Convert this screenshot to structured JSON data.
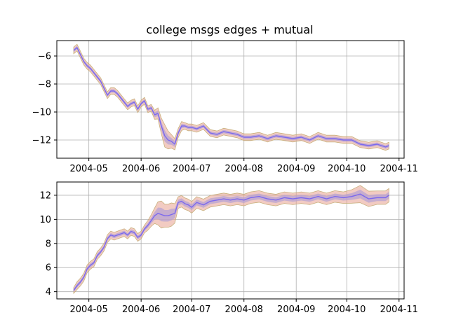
{
  "figure": {
    "title": "college msgs edges + mutual"
  },
  "style": {
    "line_color": "#7b68ee",
    "band_inner_color": "#b4a0d4",
    "band_outer_color": "#e8a090",
    "band_upper_color": "#c8b07c",
    "grid_color": "#b0b0b0",
    "spine_color": "#000000"
  },
  "chart_data": [
    {
      "type": "line",
      "title": "college msgs edges + mutual",
      "xlabel": "",
      "ylabel": "",
      "x_ticks": [
        "2004-05",
        "2004-06",
        "2004-07",
        "2004-08",
        "2004-09",
        "2004-10",
        "2004-11"
      ],
      "x_tick_dates": [
        "2004-05-01",
        "2004-06-01",
        "2004-07-01",
        "2004-08-01",
        "2004-09-01",
        "2004-10-01",
        "2004-11-01"
      ],
      "xlim": [
        "2004-04-12",
        "2004-11-04"
      ],
      "y_ticks": [
        -12,
        -10,
        -8,
        -6
      ],
      "ylim": [
        -13.3,
        -4.9
      ],
      "grid": true,
      "series": [
        {
          "x": [
            "2004-04-22",
            "2004-04-24",
            "2004-04-26",
            "2004-04-28",
            "2004-04-30",
            "2004-05-02",
            "2004-05-04",
            "2004-05-06",
            "2004-05-08",
            "2004-05-10",
            "2004-05-12",
            "2004-05-14",
            "2004-05-16",
            "2004-05-18",
            "2004-05-20",
            "2004-05-22",
            "2004-05-24",
            "2004-05-26",
            "2004-05-28",
            "2004-05-30",
            "2004-06-01",
            "2004-06-03",
            "2004-06-05",
            "2004-06-07",
            "2004-06-09",
            "2004-06-11",
            "2004-06-13",
            "2004-06-15",
            "2004-06-17",
            "2004-06-19",
            "2004-06-21",
            "2004-06-23",
            "2004-06-25",
            "2004-06-27",
            "2004-06-29",
            "2004-07-01",
            "2004-07-04",
            "2004-07-08",
            "2004-07-12",
            "2004-07-16",
            "2004-07-20",
            "2004-07-24",
            "2004-07-28",
            "2004-08-01",
            "2004-08-05",
            "2004-08-10",
            "2004-08-15",
            "2004-08-20",
            "2004-08-25",
            "2004-08-30",
            "2004-09-04",
            "2004-09-09",
            "2004-09-14",
            "2004-09-19",
            "2004-09-24",
            "2004-09-29",
            "2004-10-04",
            "2004-10-09",
            "2004-10-14",
            "2004-10-19",
            "2004-10-24",
            "2004-10-26"
          ],
          "y": [
            -5.6,
            -5.4,
            -5.9,
            -6.4,
            -6.7,
            -6.9,
            -7.2,
            -7.5,
            -7.8,
            -8.3,
            -8.8,
            -8.5,
            -8.5,
            -8.7,
            -9.0,
            -9.3,
            -9.6,
            -9.4,
            -9.3,
            -9.8,
            -9.4,
            -9.2,
            -9.8,
            -9.7,
            -10.2,
            -10.1,
            -11.0,
            -11.7,
            -12.0,
            -12.1,
            -12.3,
            -11.5,
            -11.0,
            -11.0,
            -11.1,
            -11.1,
            -11.2,
            -11.0,
            -11.5,
            -11.6,
            -11.4,
            -11.5,
            -11.6,
            -11.8,
            -11.8,
            -11.7,
            -11.9,
            -11.7,
            -11.8,
            -11.9,
            -11.8,
            -12.0,
            -11.7,
            -11.9,
            -11.9,
            -12.0,
            -12.0,
            -12.3,
            -12.4,
            -12.3,
            -12.5,
            -12.4
          ],
          "band_width": [
            0.15,
            0.15,
            0.15,
            0.15,
            0.15,
            0.15,
            0.15,
            0.15,
            0.15,
            0.15,
            0.15,
            0.15,
            0.15,
            0.15,
            0.15,
            0.15,
            0.15,
            0.15,
            0.15,
            0.15,
            0.15,
            0.15,
            0.15,
            0.15,
            0.2,
            0.25,
            0.35,
            0.5,
            0.4,
            0.3,
            0.25,
            0.2,
            0.2,
            0.15,
            0.15,
            0.15,
            0.15,
            0.15,
            0.15,
            0.15,
            0.15,
            0.15,
            0.15,
            0.15,
            0.15,
            0.15,
            0.15,
            0.15,
            0.15,
            0.15,
            0.15,
            0.15,
            0.15,
            0.15,
            0.15,
            0.15,
            0.15,
            0.15,
            0.15,
            0.15,
            0.15,
            0.15
          ]
        }
      ]
    },
    {
      "type": "line",
      "title": "",
      "xlabel": "",
      "ylabel": "",
      "x_ticks": [
        "2004-05",
        "2004-06",
        "2004-07",
        "2004-08",
        "2004-09",
        "2004-10",
        "2004-11"
      ],
      "x_tick_dates": [
        "2004-05-01",
        "2004-06-01",
        "2004-07-01",
        "2004-08-01",
        "2004-09-01",
        "2004-10-01",
        "2004-11-01"
      ],
      "xlim": [
        "2004-04-12",
        "2004-11-04"
      ],
      "y_ticks": [
        4,
        6,
        8,
        10,
        12
      ],
      "ylim": [
        3.4,
        13.1
      ],
      "grid": true,
      "series": [
        {
          "x": [
            "2004-04-22",
            "2004-04-24",
            "2004-04-26",
            "2004-04-28",
            "2004-04-30",
            "2004-05-02",
            "2004-05-04",
            "2004-05-06",
            "2004-05-08",
            "2004-05-10",
            "2004-05-12",
            "2004-05-14",
            "2004-05-16",
            "2004-05-18",
            "2004-05-20",
            "2004-05-22",
            "2004-05-24",
            "2004-05-26",
            "2004-05-28",
            "2004-05-30",
            "2004-06-01",
            "2004-06-03",
            "2004-06-05",
            "2004-06-07",
            "2004-06-09",
            "2004-06-11",
            "2004-06-13",
            "2004-06-15",
            "2004-06-17",
            "2004-06-19",
            "2004-06-21",
            "2004-06-23",
            "2004-06-25",
            "2004-06-27",
            "2004-06-29",
            "2004-07-01",
            "2004-07-04",
            "2004-07-08",
            "2004-07-12",
            "2004-07-16",
            "2004-07-20",
            "2004-07-24",
            "2004-07-28",
            "2004-08-01",
            "2004-08-05",
            "2004-08-10",
            "2004-08-15",
            "2004-08-20",
            "2004-08-25",
            "2004-08-30",
            "2004-09-04",
            "2004-09-09",
            "2004-09-14",
            "2004-09-19",
            "2004-09-24",
            "2004-09-29",
            "2004-10-04",
            "2004-10-09",
            "2004-10-14",
            "2004-10-19",
            "2004-10-24",
            "2004-10-26"
          ],
          "y": [
            4.1,
            4.5,
            4.8,
            5.2,
            5.9,
            6.2,
            6.4,
            7.0,
            7.3,
            7.7,
            8.4,
            8.7,
            8.6,
            8.7,
            8.8,
            8.9,
            8.7,
            9.0,
            8.9,
            8.5,
            8.7,
            9.2,
            9.5,
            9.9,
            10.3,
            10.5,
            10.4,
            10.3,
            10.3,
            10.4,
            10.5,
            11.4,
            11.5,
            11.3,
            11.2,
            11.0,
            11.4,
            11.2,
            11.5,
            11.6,
            11.7,
            11.6,
            11.7,
            11.6,
            11.8,
            11.9,
            11.7,
            11.6,
            11.8,
            11.7,
            11.8,
            11.7,
            11.9,
            11.7,
            11.9,
            11.8,
            11.9,
            12.1,
            11.7,
            11.8,
            11.8,
            12.0
          ],
          "band_width": [
            0.15,
            0.2,
            0.2,
            0.2,
            0.2,
            0.2,
            0.2,
            0.2,
            0.2,
            0.2,
            0.2,
            0.2,
            0.2,
            0.2,
            0.2,
            0.2,
            0.2,
            0.2,
            0.2,
            0.2,
            0.2,
            0.2,
            0.25,
            0.3,
            0.4,
            0.6,
            0.7,
            0.6,
            0.6,
            0.6,
            0.5,
            0.3,
            0.3,
            0.3,
            0.3,
            0.3,
            0.3,
            0.3,
            0.3,
            0.3,
            0.3,
            0.3,
            0.3,
            0.3,
            0.3,
            0.3,
            0.3,
            0.3,
            0.3,
            0.3,
            0.3,
            0.3,
            0.3,
            0.3,
            0.3,
            0.3,
            0.35,
            0.45,
            0.4,
            0.35,
            0.35,
            0.35
          ]
        }
      ]
    }
  ]
}
